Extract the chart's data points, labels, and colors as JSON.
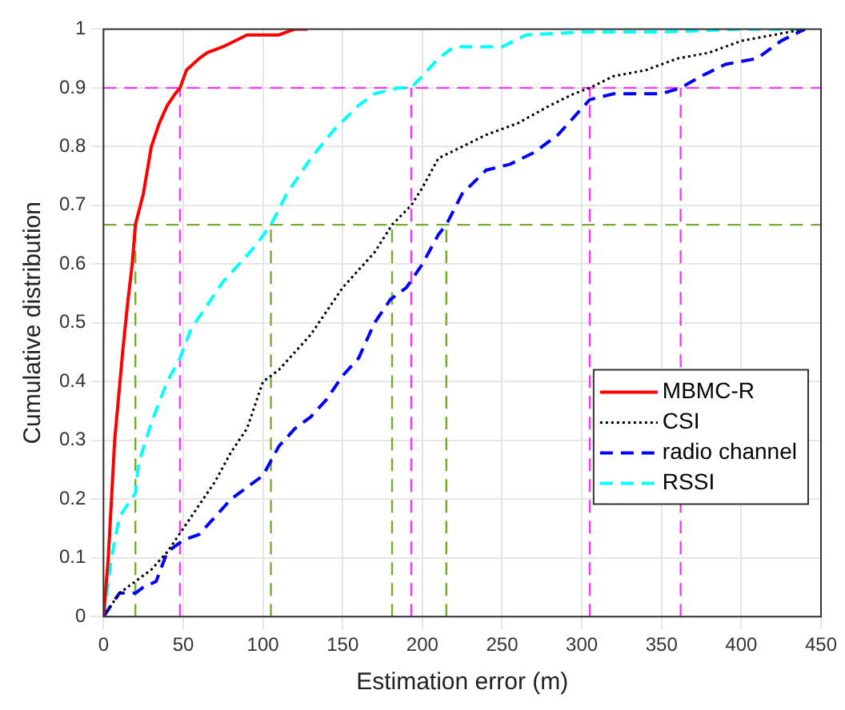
{
  "chart_data": {
    "type": "line",
    "xlabel": "Estimation error (m)",
    "ylabel": "Cumulative distribution",
    "xlim": [
      0,
      450
    ],
    "ylim": [
      0,
      1
    ],
    "xticks": [
      0,
      50,
      100,
      150,
      200,
      250,
      300,
      350,
      400,
      450
    ],
    "yticks": [
      0,
      0.1,
      0.2,
      0.3,
      0.4,
      0.5,
      0.6,
      0.7,
      0.8,
      0.9,
      1
    ],
    "grid": true,
    "legend": "right",
    "marker": "none",
    "ref_lines": [
      {
        "axis": "y",
        "value": 0.9,
        "color": "#ff33ff",
        "line_style": "dashed"
      },
      {
        "axis": "y",
        "value": 0.667,
        "color": "#77ac30",
        "line_style": "dashed"
      }
    ],
    "series": [
      {
        "name": "MBMC-R",
        "color": "#ff0000",
        "line_style": "solid",
        "x": [
          0,
          3,
          7,
          12,
          15,
          18,
          20,
          25,
          30,
          35,
          40,
          45,
          48,
          52,
          60,
          65,
          75,
          90,
          110,
          120,
          128
        ],
        "values": [
          0,
          0.1,
          0.3,
          0.45,
          0.53,
          0.6,
          0.667,
          0.72,
          0.8,
          0.84,
          0.87,
          0.89,
          0.9,
          0.93,
          0.95,
          0.96,
          0.97,
          0.99,
          0.99,
          1,
          1
        ]
      },
      {
        "name": "CSI",
        "color": "#000000",
        "line_style": "dotted",
        "x": [
          0,
          10,
          20,
          30,
          40,
          50,
          60,
          70,
          80,
          90,
          100,
          110,
          120,
          130,
          140,
          150,
          160,
          170,
          181,
          193,
          200,
          210,
          225,
          240,
          260,
          280,
          295,
          305,
          320,
          340,
          360,
          380,
          400,
          420,
          440
        ],
        "values": [
          0,
          0.04,
          0.06,
          0.08,
          0.11,
          0.15,
          0.19,
          0.23,
          0.28,
          0.32,
          0.4,
          0.42,
          0.45,
          0.48,
          0.52,
          0.56,
          0.59,
          0.62,
          0.667,
          0.7,
          0.73,
          0.78,
          0.8,
          0.82,
          0.84,
          0.87,
          0.89,
          0.9,
          0.92,
          0.93,
          0.95,
          0.96,
          0.98,
          0.99,
          1
        ]
      },
      {
        "name": "radio channel",
        "color": "#0000ff",
        "line_style": "dashed",
        "x": [
          0,
          10,
          20,
          25,
          33,
          40,
          50,
          60,
          70,
          80,
          90,
          100,
          110,
          120,
          130,
          140,
          150,
          160,
          170,
          180,
          190,
          200,
          210,
          215,
          225,
          240,
          255,
          270,
          285,
          295,
          305,
          320,
          350,
          362,
          375,
          390,
          410,
          425,
          440
        ],
        "values": [
          0,
          0.04,
          0.04,
          0.05,
          0.06,
          0.11,
          0.13,
          0.14,
          0.17,
          0.2,
          0.22,
          0.24,
          0.29,
          0.32,
          0.34,
          0.37,
          0.41,
          0.44,
          0.5,
          0.54,
          0.56,
          0.6,
          0.65,
          0.667,
          0.72,
          0.76,
          0.77,
          0.79,
          0.82,
          0.85,
          0.88,
          0.89,
          0.89,
          0.9,
          0.92,
          0.94,
          0.95,
          0.98,
          1
        ]
      },
      {
        "name": "RSSI",
        "color": "#00ffff",
        "line_style": "dashed",
        "x": [
          0,
          5,
          10,
          20,
          22,
          30,
          40,
          48,
          55,
          65,
          75,
          85,
          95,
          105,
          115,
          130,
          145,
          160,
          170,
          185,
          193,
          200,
          210,
          220,
          250,
          265,
          300,
          350,
          400,
          440
        ],
        "values": [
          0,
          0.1,
          0.17,
          0.21,
          0.26,
          0.33,
          0.4,
          0.44,
          0.49,
          0.53,
          0.57,
          0.6,
          0.63,
          0.667,
          0.72,
          0.78,
          0.83,
          0.87,
          0.89,
          0.9,
          0.9,
          0.92,
          0.95,
          0.97,
          0.97,
          0.99,
          0.995,
          0.995,
          1,
          1
        ]
      },
      {
        "color": "#77ac30",
        "line_style": "dashed",
        "x": [
          20,
          20
        ],
        "values": [
          0,
          0.667
        ]
      },
      {
        "color": "#77ac30",
        "line_style": "dashed",
        "x": [
          105,
          105
        ],
        "values": [
          0,
          0.667
        ]
      },
      {
        "color": "#77ac30",
        "line_style": "dashed",
        "x": [
          181,
          181
        ],
        "values": [
          0,
          0.667
        ]
      },
      {
        "color": "#77ac30",
        "line_style": "dashed",
        "x": [
          215,
          215
        ],
        "values": [
          0,
          0.667
        ]
      },
      {
        "color": "#ff33ff",
        "line_style": "dashed",
        "x": [
          48,
          48
        ],
        "values": [
          0,
          0.9
        ]
      },
      {
        "color": "#ff33ff",
        "line_style": "dashed",
        "x": [
          193,
          193
        ],
        "values": [
          0,
          0.9
        ]
      },
      {
        "color": "#ff33ff",
        "line_style": "dashed",
        "x": [
          305,
          305
        ],
        "values": [
          0,
          0.9
        ]
      },
      {
        "color": "#ff33ff",
        "line_style": "dashed",
        "x": [
          362,
          362
        ],
        "values": [
          0,
          0.9
        ]
      }
    ]
  }
}
